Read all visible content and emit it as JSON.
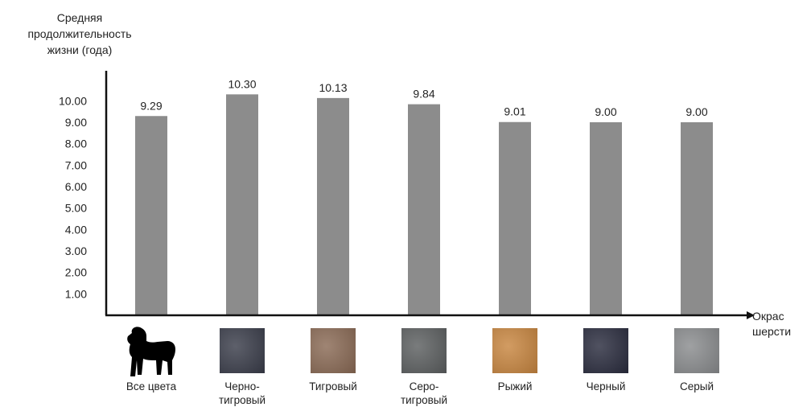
{
  "chart_data": {
    "type": "bar",
    "ylabel": "Средняя продолжительность жизни (года)",
    "xlabel": "Окрас шерсти",
    "ylim": [
      0,
      10.8
    ],
    "yticks": [
      "1.00",
      "2.00",
      "3.00",
      "4.00",
      "5.00",
      "6.00",
      "7.00",
      "8.00",
      "9.00",
      "10.00"
    ],
    "grid": false,
    "bar_color": "#8c8c8c",
    "categories": [
      "Все цвета",
      "Черно-\nтигровый",
      "Тигровый",
      "Серо-\nтигровый",
      "Рыжий",
      "Черный",
      "Серый"
    ],
    "values": [
      9.29,
      10.3,
      10.13,
      9.84,
      9.01,
      9.0,
      9.0
    ],
    "value_labels": [
      "9.29",
      "10.30",
      "10.13",
      "9.84",
      "9.01",
      "9.00",
      "9.00"
    ],
    "category_icons": [
      {
        "icon": "dog-silhouette-icon",
        "color": "#000000"
      },
      {
        "icon": "black-brindle-fur-swatch",
        "color": "#3a3d4a"
      },
      {
        "icon": "brindle-fur-swatch",
        "color": "#8a6a55"
      },
      {
        "icon": "gray-brindle-fur-swatch",
        "color": "#5c5f60"
      },
      {
        "icon": "red-fur-swatch",
        "color": "#c88640"
      },
      {
        "icon": "black-fur-swatch",
        "color": "#2a2c3e"
      },
      {
        "icon": "gray-fur-swatch",
        "color": "#8a8c8e"
      }
    ]
  }
}
